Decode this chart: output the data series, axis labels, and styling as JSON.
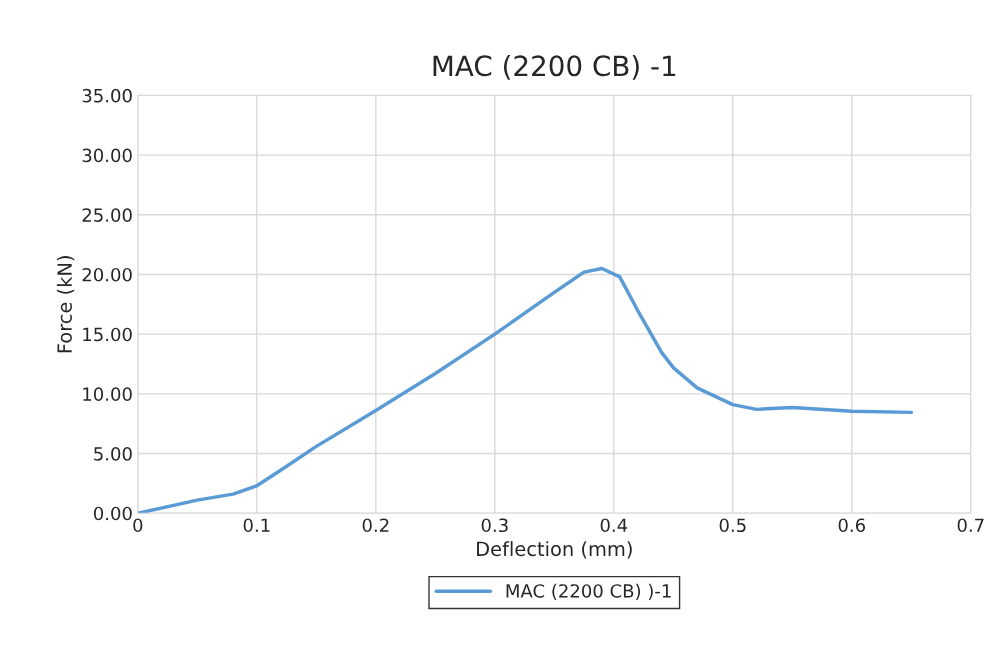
{
  "chart_data": {
    "type": "line",
    "title": "MAC (2200 CB) -1",
    "xlabel": "Deflection (mm)",
    "ylabel": "Force (kN)",
    "x": [
      0,
      0.05,
      0.08,
      0.1,
      0.12,
      0.15,
      0.2,
      0.25,
      0.3,
      0.35,
      0.375,
      0.39,
      0.405,
      0.42,
      0.44,
      0.45,
      0.47,
      0.5,
      0.52,
      0.55,
      0.6,
      0.65
    ],
    "series": [
      {
        "name": "MAC (2200 CB) )-1",
        "color": "#5b9bd5",
        "values": [
          0,
          1.1,
          1.6,
          2.3,
          3.6,
          5.6,
          8.6,
          11.7,
          15.0,
          18.5,
          20.2,
          20.5,
          19.8,
          17.0,
          13.5,
          12.2,
          10.5,
          9.1,
          8.7,
          8.85,
          8.55,
          8.45
        ]
      }
    ],
    "xlim": [
      0,
      0.7
    ],
    "xticks": [
      0,
      0.1,
      0.2,
      0.3,
      0.4,
      0.5,
      0.6,
      0.7
    ],
    "ylim": [
      0,
      35
    ],
    "yticks": [
      {
        "value": 0,
        "label": "0.00"
      },
      {
        "value": 5,
        "label": "5.00"
      },
      {
        "value": 10,
        "label": "10.00"
      },
      {
        "value": 15,
        "label": "15.00"
      },
      {
        "value": 20,
        "label": "20.00"
      },
      {
        "value": 25,
        "label": "25.00"
      },
      {
        "value": 30,
        "label": "30.00"
      },
      {
        "value": 35,
        "label": "35.00"
      }
    ],
    "grid": true,
    "legend": "bottom",
    "marker": "none",
    "line_style": "solid"
  }
}
